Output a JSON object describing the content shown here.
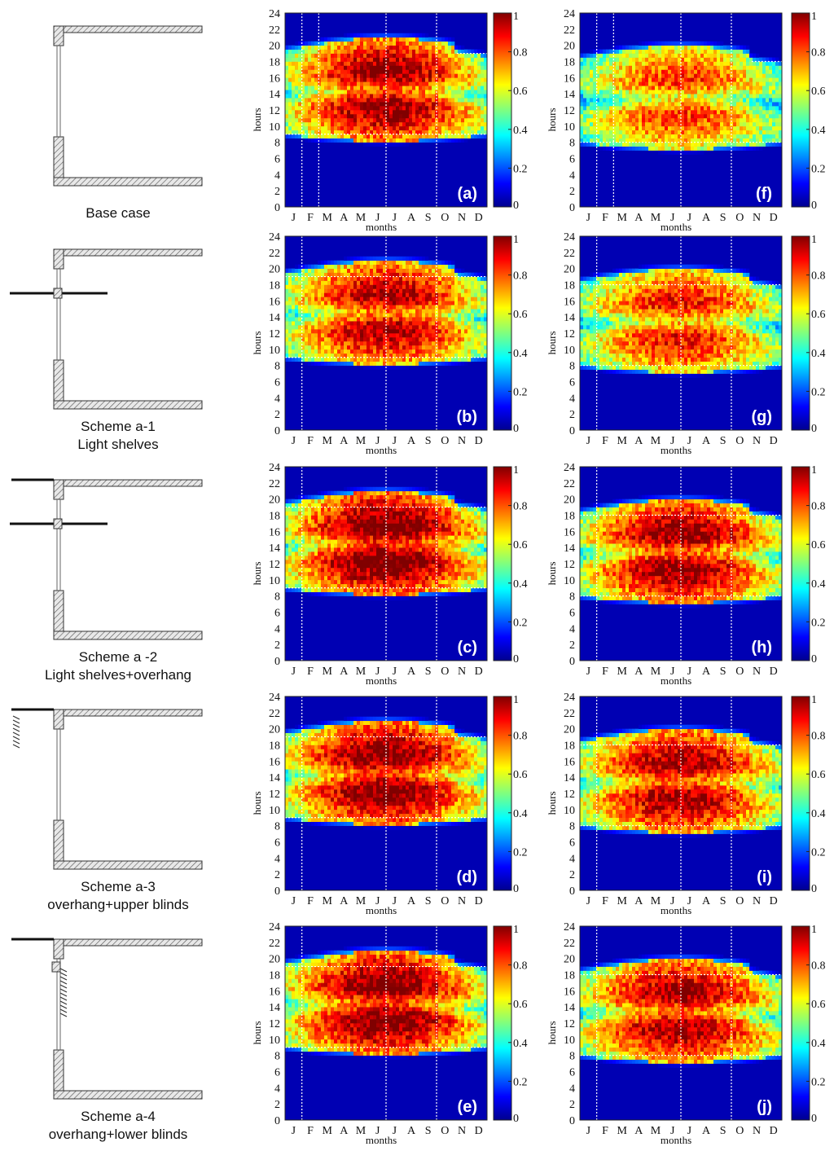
{
  "chart_data": {
    "type": "heatmap",
    "title": "",
    "xlabel": "months",
    "ylabel": "hours",
    "x_ticks": [
      "J",
      "F",
      "M",
      "A",
      "M",
      "J",
      "J",
      "A",
      "S",
      "O",
      "N",
      "D"
    ],
    "y_ticks": [
      "0",
      "2",
      "4",
      "6",
      "8",
      "10",
      "12",
      "14",
      "16",
      "18",
      "20",
      "22",
      "24"
    ],
    "ylim": [
      0,
      24
    ],
    "colorbar": {
      "ticks": [
        "0",
        "0.2",
        "0.4",
        "0.6",
        "0.8",
        "1"
      ],
      "range": [
        0,
        1
      ],
      "colormap": "jet"
    },
    "cases": [
      {
        "id": "base",
        "label_lines": [
          "Base case"
        ],
        "diagram": "none"
      },
      {
        "id": "a1",
        "label_lines": [
          "Scheme a-1",
          "Light shelves"
        ],
        "diagram": "shelf"
      },
      {
        "id": "a2",
        "label_lines": [
          "Scheme a -2",
          "Light shelves+overhang"
        ],
        "diagram": "shelf-overhang"
      },
      {
        "id": "a3",
        "label_lines": [
          "Scheme a-3",
          "overhang+upper blinds"
        ],
        "diagram": "overhang-upper"
      },
      {
        "id": "a4",
        "label_lines": [
          "Scheme a-4",
          "overhang+lower blinds"
        ],
        "diagram": "overhang-lower"
      }
    ],
    "panels": [
      {
        "label": "(a)",
        "row": 0,
        "col": 0,
        "hour_start": 9,
        "hour_end": 19,
        "guide_hours": [
          9,
          19
        ],
        "month_guides": [
          1,
          2,
          6,
          9
        ],
        "peak": 0.92
      },
      {
        "label": "(b)",
        "row": 1,
        "col": 0,
        "hour_start": 9,
        "hour_end": 19,
        "guide_hours": [
          9,
          19
        ],
        "month_guides": [
          1,
          6,
          9
        ],
        "peak": 0.88
      },
      {
        "label": "(c)",
        "row": 2,
        "col": 0,
        "hour_start": 9,
        "hour_end": 19,
        "guide_hours": [
          9,
          19
        ],
        "month_guides": [
          1,
          6,
          9
        ],
        "peak": 0.97
      },
      {
        "label": "(d)",
        "row": 3,
        "col": 0,
        "hour_start": 9,
        "hour_end": 19,
        "guide_hours": [
          9,
          19
        ],
        "month_guides": [
          1,
          6,
          9
        ],
        "peak": 0.95
      },
      {
        "label": "(e)",
        "row": 4,
        "col": 0,
        "hour_start": 9,
        "hour_end": 19,
        "guide_hours": [
          9,
          19
        ],
        "month_guides": [
          1,
          6,
          9
        ],
        "peak": 0.95
      },
      {
        "label": "(f)",
        "row": 0,
        "col": 1,
        "hour_start": 8,
        "hour_end": 18,
        "guide_hours": [
          8,
          18
        ],
        "month_guides": [
          1,
          2,
          6,
          9
        ],
        "peak": 0.75
      },
      {
        "label": "(g)",
        "row": 1,
        "col": 1,
        "hour_start": 8,
        "hour_end": 18,
        "guide_hours": [
          8,
          18
        ],
        "month_guides": [
          1,
          6,
          9
        ],
        "peak": 0.8
      },
      {
        "label": "(h)",
        "row": 2,
        "col": 1,
        "hour_start": 8,
        "hour_end": 18,
        "guide_hours": [
          8,
          18
        ],
        "month_guides": [
          1,
          6,
          9
        ],
        "peak": 0.92
      },
      {
        "label": "(i)",
        "row": 3,
        "col": 1,
        "hour_start": 8,
        "hour_end": 18,
        "guide_hours": [
          8,
          18
        ],
        "month_guides": [
          1,
          6,
          9
        ],
        "peak": 0.9
      },
      {
        "label": "(j)",
        "row": 4,
        "col": 1,
        "hour_start": 8,
        "hour_end": 18,
        "guide_hours": [
          8,
          18
        ],
        "month_guides": [
          1,
          6,
          9
        ],
        "peak": 0.9
      }
    ]
  }
}
